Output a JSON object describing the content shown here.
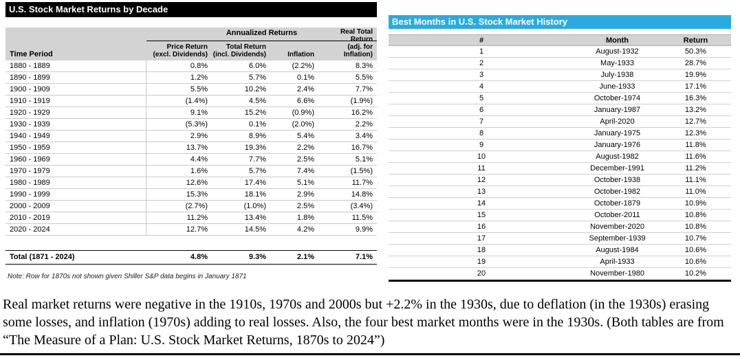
{
  "colors": {
    "accent_blue": "#29ABE2",
    "title_bar_black": "#000000",
    "header_gray": "#D3D3D3"
  },
  "left_table": {
    "title": "U.S. Stock Market Returns by Decade",
    "group_header": "Annualized Returns",
    "col_time_period": "Time Period",
    "columns": [
      {
        "line1": "Price Return",
        "line2": "(excl. Dividends)"
      },
      {
        "line1": "Total Return",
        "line2": "(incl. Dividends)"
      },
      {
        "line1": "Inflation",
        "line2": ""
      },
      {
        "line1": "Real Total Return",
        "line2": "(adj. for Inflation)"
      }
    ],
    "rows": [
      {
        "period": "1880 - 1889",
        "price": "0.8%",
        "total": "6.0%",
        "inflation": "(2.2%)",
        "real": "8.3%"
      },
      {
        "period": "1890 - 1899",
        "price": "1.2%",
        "total": "5.7%",
        "inflation": "0.1%",
        "real": "5.5%"
      },
      {
        "period": "1900 - 1909",
        "price": "5.5%",
        "total": "10.2%",
        "inflation": "2.4%",
        "real": "7.7%"
      },
      {
        "period": "1910 - 1919",
        "price": "(1.4%)",
        "total": "4.5%",
        "inflation": "6.6%",
        "real": "(1.9%)"
      },
      {
        "period": "1920 - 1929",
        "price": "9.1%",
        "total": "15.2%",
        "inflation": "(0.9%)",
        "real": "16.2%"
      },
      {
        "period": "1930 - 1939",
        "price": "(5.3%)",
        "total": "0.1%",
        "inflation": "(2.0%)",
        "real": "2.2%"
      },
      {
        "period": "1940 - 1949",
        "price": "2.9%",
        "total": "8.9%",
        "inflation": "5.4%",
        "real": "3.4%"
      },
      {
        "period": "1950 - 1959",
        "price": "13.7%",
        "total": "19.3%",
        "inflation": "2.2%",
        "real": "16.7%"
      },
      {
        "period": "1960 - 1969",
        "price": "4.4%",
        "total": "7.7%",
        "inflation": "2.5%",
        "real": "5.1%"
      },
      {
        "period": "1970 - 1979",
        "price": "1.6%",
        "total": "5.7%",
        "inflation": "7.4%",
        "real": "(1.5%)"
      },
      {
        "period": "1980 - 1989",
        "price": "12.6%",
        "total": "17.4%",
        "inflation": "5.1%",
        "real": "11.7%"
      },
      {
        "period": "1990 - 1999",
        "price": "15.3%",
        "total": "18.1%",
        "inflation": "2.9%",
        "real": "14.8%"
      },
      {
        "period": "2000 - 2009",
        "price": "(2.7%)",
        "total": "(1.0%)",
        "inflation": "2.5%",
        "real": "(3.4%)"
      },
      {
        "period": "2010 - 2019",
        "price": "11.2%",
        "total": "13.4%",
        "inflation": "1.8%",
        "real": "11.5%"
      },
      {
        "period": "2020 - 2024",
        "price": "12.7%",
        "total": "14.5%",
        "inflation": "4.2%",
        "real": "9.9%"
      }
    ],
    "total_row": {
      "period": "Total (1871 - 2024)",
      "price": "4.8%",
      "total": "9.3%",
      "inflation": "2.1%",
      "real": "7.1%"
    },
    "note": "Note: Row for 1870s not shown given Shiller S&P data begins in January 1871"
  },
  "right_table": {
    "title": "Best Months in U.S. Stock Market History",
    "columns": [
      "#",
      "Month",
      "Return"
    ],
    "rows": [
      {
        "rank": "1",
        "month": "August-1932",
        "return": "50.3%"
      },
      {
        "rank": "2",
        "month": "May-1933",
        "return": "28.7%"
      },
      {
        "rank": "3",
        "month": "July-1938",
        "return": "19.9%"
      },
      {
        "rank": "4",
        "month": "June-1933",
        "return": "17.1%"
      },
      {
        "rank": "5",
        "month": "October-1974",
        "return": "16.3%"
      },
      {
        "rank": "6",
        "month": "January-1987",
        "return": "13.2%"
      },
      {
        "rank": "7",
        "month": "April-2020",
        "return": "12.7%"
      },
      {
        "rank": "8",
        "month": "January-1975",
        "return": "12.3%"
      },
      {
        "rank": "9",
        "month": "January-1976",
        "return": "11.8%"
      },
      {
        "rank": "10",
        "month": "August-1982",
        "return": "11.6%"
      },
      {
        "rank": "11",
        "month": "December-1991",
        "return": "11.2%"
      },
      {
        "rank": "12",
        "month": "October-1938",
        "return": "11.1%"
      },
      {
        "rank": "13",
        "month": "October-1982",
        "return": "11.0%"
      },
      {
        "rank": "14",
        "month": "October-1879",
        "return": "10.9%"
      },
      {
        "rank": "15",
        "month": "October-2011",
        "return": "10.8%"
      },
      {
        "rank": "16",
        "month": "November-2020",
        "return": "10.8%"
      },
      {
        "rank": "17",
        "month": "September-1939",
        "return": "10.7%"
      },
      {
        "rank": "18",
        "month": "August-1984",
        "return": "10.6%"
      },
      {
        "rank": "19",
        "month": "April-1933",
        "return": "10.6%"
      },
      {
        "rank": "20",
        "month": "November-1980",
        "return": "10.2%"
      }
    ]
  },
  "caption": "Real market returns were negative in the 1910s, 1970s and 2000s but +2.2% in the 1930s, due to deflation (in the 1930s) erasing some losses, and inflation (1970s) adding to real losses. Also, the four best market months were in the 1930s. (Both tables are from “The Measure of a Plan: U.S. Stock Market Returns, 1870s to 2024”)"
}
